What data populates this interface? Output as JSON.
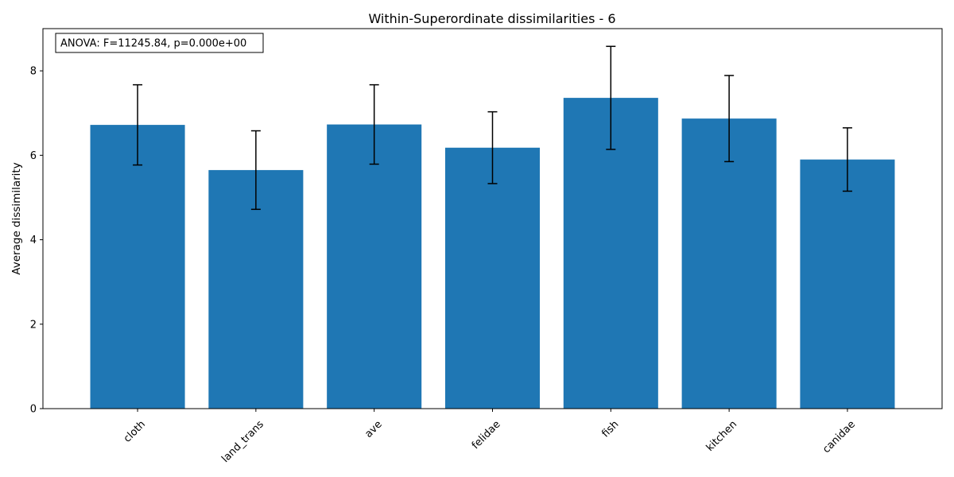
{
  "chart_data": {
    "type": "bar",
    "title": "Within-Superordinate dissimilarities - 6",
    "xlabel": "",
    "ylabel": "Average dissimilarity",
    "categories": [
      "cloth",
      "land_trans",
      "ave",
      "felidae",
      "fish",
      "kitchen",
      "canidae"
    ],
    "values": [
      6.72,
      5.65,
      6.73,
      6.18,
      7.36,
      6.87,
      5.9
    ],
    "errors": [
      0.95,
      0.93,
      0.94,
      0.85,
      1.22,
      1.02,
      0.75
    ],
    "ylim": [
      0,
      9
    ],
    "yticks": [
      "0",
      "2",
      "4",
      "6",
      "8"
    ],
    "bar_color": "#1f77b4",
    "grid": false,
    "annotation": "ANOVA: F=11245.84, p=0.000e+00"
  }
}
